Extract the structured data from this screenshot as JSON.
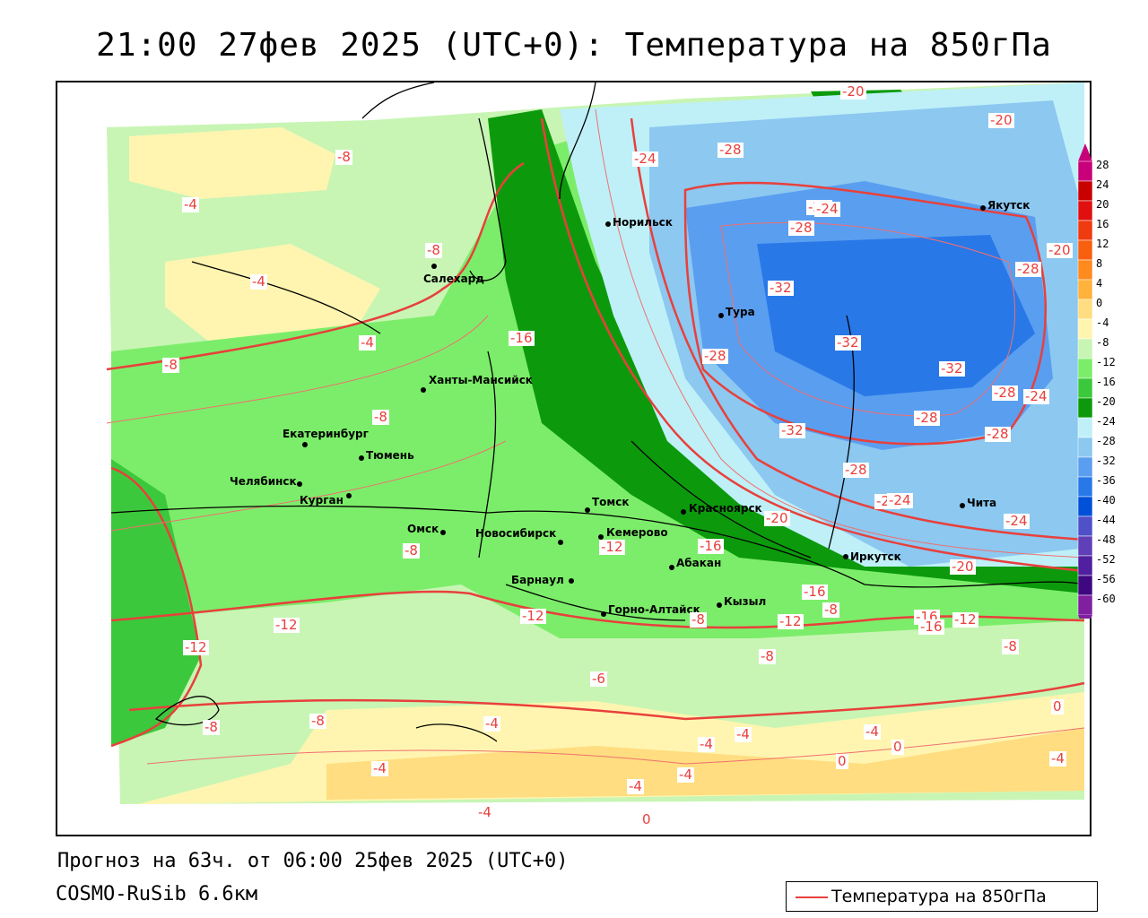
{
  "title": "21:00 27фев 2025 (UTC+0): Температура на 850гПа",
  "footer": {
    "forecast": "Прогноз на 63ч. от 06:00 25фев 2025 (UTC+0)",
    "model": "COSMO-RuSib 6.6км"
  },
  "legend": {
    "label": "Температура на 850гПа",
    "line_color": "#e8403c"
  },
  "colorbar": {
    "labels": [
      "28",
      "24",
      "20",
      "16",
      "12",
      "8",
      "4",
      "0",
      "-4",
      "-8",
      "-12",
      "-16",
      "-20",
      "-24",
      "-28",
      "-32",
      "-36",
      "-40",
      "-44",
      "-48",
      "-52",
      "-56",
      "-60"
    ],
    "colors": [
      "#c8007a",
      "#c80000",
      "#e01010",
      "#f03a10",
      "#f86010",
      "#ff8a1e",
      "#ffb23c",
      "#ffdd80",
      "#fff5b0",
      "#c8f5b4",
      "#7ced6a",
      "#3cc83c",
      "#0c9a0c",
      "#bff0f8",
      "#8cc8f0",
      "#5a9ef0",
      "#2878e8",
      "#0050d8",
      "#5050c8",
      "#6040b8",
      "#5020a0",
      "#400880",
      "#8020a0"
    ]
  },
  "cities": [
    {
      "name": "Норильск"
    },
    {
      "name": "Якутск"
    },
    {
      "name": "Салехард"
    },
    {
      "name": "Тура"
    },
    {
      "name": "Ханты-Мансийск"
    },
    {
      "name": "Екатеринбург"
    },
    {
      "name": "Тюмень"
    },
    {
      "name": "Челябинск"
    },
    {
      "name": "Курган"
    },
    {
      "name": "Томск"
    },
    {
      "name": "Красноярск"
    },
    {
      "name": "Омск"
    },
    {
      "name": "Новосибирск"
    },
    {
      "name": "Кемерово"
    },
    {
      "name": "Абакан"
    },
    {
      "name": "Иркутск"
    },
    {
      "name": "Чита"
    },
    {
      "name": "Барнаул"
    },
    {
      "name": "Горно-Алтайск"
    },
    {
      "name": "Кызыл"
    }
  ],
  "isotherm_labels": [
    "-24",
    "-28",
    "-24",
    "-28",
    "-32",
    "-28",
    "-32",
    "-28",
    "-32",
    "-24",
    "-28",
    "-24",
    "-20",
    "-28",
    "-28",
    "-32",
    "-20",
    "-20",
    "-24",
    "-24",
    "-20",
    "-16",
    "-16",
    "-12",
    "-16",
    "-12",
    "-8",
    "-8",
    "-8",
    "-4",
    "-8",
    "-4",
    "-4",
    "-8",
    "-8",
    "-12",
    "-12",
    "-12",
    "-12",
    "-8",
    "-8",
    "-6",
    "-8",
    "-8",
    "-8",
    "-4",
    "-4",
    "-4",
    "-4",
    "-4",
    "-4",
    "-4",
    "0",
    "0",
    "0",
    "-4",
    "-4",
    "0",
    "-16",
    "-20",
    "-16",
    "-28",
    "-24"
  ]
}
